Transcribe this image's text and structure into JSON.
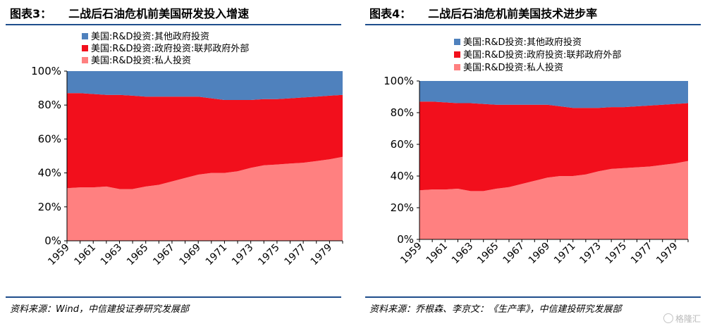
{
  "figures": [
    {
      "number": "图表3：",
      "title": "二战后石油危机前美国研发投入增速",
      "source": "资料来源：Wind，中信建投证券研究发展部"
    },
    {
      "number": "图表4：",
      "title": "二战后石油危机前美国技术进步率",
      "source": "资料来源：乔根森、李京文：《生产率》，中信建投研究发展部"
    }
  ],
  "watermark": "格隆汇",
  "colors": {
    "rule": "#1f4e8c",
    "series_other": "#4f81bd",
    "series_federal": "#f20f1c",
    "series_private": "#ff8080"
  },
  "chart_data": [
    {
      "type": "area",
      "stacked": true,
      "grid": false,
      "legend_position": "top-left",
      "x": [
        1959,
        1960,
        1961,
        1962,
        1963,
        1964,
        1965,
        1966,
        1967,
        1968,
        1969,
        1970,
        1971,
        1972,
        1973,
        1974,
        1975,
        1976,
        1977,
        1978,
        1979,
        1980
      ],
      "x_tick_labels": [
        "1959",
        "1961",
        "1963",
        "1965",
        "1967",
        "1969",
        "1971",
        "1973",
        "1975",
        "1977",
        "1979"
      ],
      "y_tick_labels": [
        "0%",
        "20%",
        "40%",
        "60%",
        "80%",
        "100%"
      ],
      "ylim": [
        0,
        100
      ],
      "series": [
        {
          "name": "美国:R&D投资:私人投资",
          "color": "#ff8080",
          "values": [
            31,
            31.5,
            31.5,
            32,
            30.5,
            30.5,
            32,
            33,
            35,
            37,
            39,
            40,
            40,
            41,
            43,
            44.5,
            45,
            45.5,
            46,
            47,
            48,
            49.5
          ]
        },
        {
          "name": "美国:R&D投资:政府投资:联邦政府外部",
          "color": "#f20f1c",
          "values": [
            56,
            55.5,
            55,
            54,
            55.5,
            55,
            53,
            52,
            50,
            48,
            46,
            44,
            43,
            42,
            40,
            39,
            38.5,
            38.5,
            38.5,
            38,
            37.5,
            36.5
          ]
        },
        {
          "name": "美国:R&D投资:其他政府投资",
          "color": "#4f81bd",
          "values": [
            13,
            13,
            13.5,
            14,
            14,
            14.5,
            15,
            15,
            15,
            15,
            15,
            16,
            17,
            17,
            17,
            16.5,
            16.5,
            16,
            15.5,
            15,
            14.5,
            14
          ]
        }
      ]
    },
    {
      "type": "area",
      "stacked": true,
      "grid": false,
      "legend_position": "top-left",
      "x": [
        1959,
        1960,
        1961,
        1962,
        1963,
        1964,
        1965,
        1966,
        1967,
        1968,
        1969,
        1970,
        1971,
        1972,
        1973,
        1974,
        1975,
        1976,
        1977,
        1978,
        1979,
        1980
      ],
      "x_tick_labels": [
        "1959",
        "1961",
        "1963",
        "1965",
        "1967",
        "1969",
        "1971",
        "1973",
        "1975",
        "1977",
        "1979"
      ],
      "y_tick_labels": [
        "0%",
        "20%",
        "40%",
        "60%",
        "80%",
        "100%"
      ],
      "ylim": [
        0,
        100
      ],
      "series": [
        {
          "name": "美国:R&D投资:私人投资",
          "color": "#ff8080",
          "values": [
            31,
            31.5,
            31.5,
            32,
            30.5,
            30.5,
            32,
            33,
            35,
            37,
            39,
            40,
            40,
            41,
            43,
            44.5,
            45,
            45.5,
            46,
            47,
            48,
            49.5
          ]
        },
        {
          "name": "美国:R&D投资:政府投资:联邦政府外部",
          "color": "#f20f1c",
          "values": [
            56,
            55.5,
            55,
            54,
            55.5,
            55,
            53,
            52,
            50,
            48,
            46,
            44,
            43,
            42,
            40,
            39,
            38.5,
            38.5,
            38.5,
            38,
            37.5,
            36.5
          ]
        },
        {
          "name": "美国:R&D投资:其他政府投资",
          "color": "#4f81bd",
          "values": [
            13,
            13,
            13.5,
            14,
            14,
            14.5,
            15,
            15,
            15,
            15,
            15,
            16,
            17,
            17,
            17,
            16.5,
            16.5,
            16,
            15.5,
            15,
            14.5,
            14
          ]
        }
      ]
    }
  ]
}
